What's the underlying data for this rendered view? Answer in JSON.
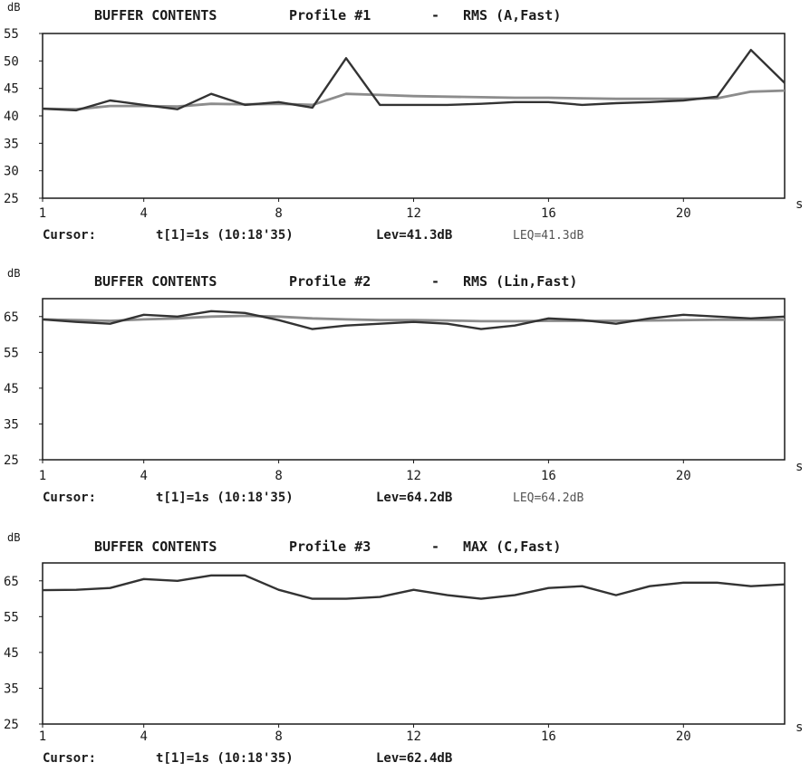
{
  "colors": {
    "trace": "#333333",
    "average": "#8c8c8c",
    "frame": "#1a1a1a",
    "background": "#ffffff"
  },
  "chart_data": [
    {
      "type": "line",
      "title": "BUFFER CONTENTS",
      "profile": "Profile #1",
      "separator": "-",
      "mode": "RMS (A,Fast)",
      "ylabel": "dB",
      "xlabel": "s",
      "ylim": [
        25,
        55
      ],
      "yticks": [
        55,
        50,
        45,
        40,
        35,
        30,
        25
      ],
      "xlim": [
        1,
        23
      ],
      "xticks": [
        1,
        4,
        8,
        12,
        16,
        20
      ],
      "series": [
        {
          "x": [
            1,
            2,
            3,
            4,
            5,
            6,
            7,
            8,
            9,
            10,
            11,
            12,
            13,
            14,
            15,
            16,
            17,
            18,
            19,
            20,
            21,
            22,
            23
          ],
          "values": [
            41.3,
            41.0,
            42.8,
            42.0,
            41.2,
            44.0,
            42.0,
            42.5,
            41.5,
            50.5,
            42.0,
            42.0,
            42.0,
            42.2,
            42.5,
            42.5,
            42.0,
            42.3,
            42.5,
            42.8,
            43.5,
            52.0,
            46.0
          ]
        },
        {
          "x": [
            1,
            2,
            3,
            4,
            5,
            6,
            7,
            8,
            9,
            10,
            11,
            12,
            13,
            14,
            15,
            16,
            17,
            18,
            19,
            20,
            21,
            22,
            23
          ],
          "values": [
            41.3,
            41.2,
            41.8,
            41.8,
            41.7,
            42.2,
            42.1,
            42.2,
            42.0,
            44.0,
            43.8,
            43.6,
            43.5,
            43.4,
            43.3,
            43.3,
            43.2,
            43.1,
            43.1,
            43.1,
            43.2,
            44.4,
            44.6
          ]
        }
      ],
      "cursor": {
        "label": "Cursor:",
        "time": "t[1]=1s (10:18'35)",
        "level": "Lev=41.3dB",
        "leq": "LEQ=41.3dB"
      }
    },
    {
      "type": "line",
      "title": "BUFFER CONTENTS",
      "profile": "Profile #2",
      "separator": "-",
      "mode": "RMS (Lin,Fast)",
      "ylabel": "dB",
      "xlabel": "s",
      "ylim": [
        25,
        70
      ],
      "yticks": [
        65,
        55,
        45,
        35,
        25
      ],
      "xlim": [
        1,
        23
      ],
      "xticks": [
        1,
        4,
        8,
        12,
        16,
        20
      ],
      "series": [
        {
          "x": [
            1,
            2,
            3,
            4,
            5,
            6,
            7,
            8,
            9,
            10,
            11,
            12,
            13,
            14,
            15,
            16,
            17,
            18,
            19,
            20,
            21,
            22,
            23
          ],
          "values": [
            64.2,
            63.5,
            63.0,
            65.5,
            65.0,
            66.5,
            66.0,
            64.0,
            61.5,
            62.5,
            63.0,
            63.5,
            63.0,
            61.5,
            62.5,
            64.5,
            64.0,
            63.0,
            64.5,
            65.5,
            65.0,
            64.5,
            65.0
          ]
        },
        {
          "x": [
            1,
            2,
            3,
            4,
            5,
            6,
            7,
            8,
            9,
            10,
            11,
            12,
            13,
            14,
            15,
            16,
            17,
            18,
            19,
            20,
            21,
            22,
            23
          ],
          "values": [
            64.2,
            64.0,
            63.8,
            64.2,
            64.5,
            65.0,
            65.2,
            65.0,
            64.5,
            64.2,
            64.0,
            64.0,
            63.9,
            63.7,
            63.7,
            63.8,
            63.8,
            63.8,
            63.9,
            64.0,
            64.1,
            64.1,
            64.1
          ]
        }
      ],
      "cursor": {
        "label": "Cursor:",
        "time": "t[1]=1s (10:18'35)",
        "level": "Lev=64.2dB",
        "leq": "LEQ=64.2dB"
      }
    },
    {
      "type": "line",
      "title": "BUFFER CONTENTS",
      "profile": "Profile #3",
      "separator": "-",
      "mode": "MAX (C,Fast)",
      "ylabel": "dB",
      "xlabel": "s",
      "ylim": [
        25,
        70
      ],
      "yticks": [
        65,
        55,
        45,
        35,
        25
      ],
      "xlim": [
        1,
        23
      ],
      "xticks": [
        1,
        4,
        8,
        12,
        16,
        20
      ],
      "series": [
        {
          "x": [
            1,
            2,
            3,
            4,
            5,
            6,
            7,
            8,
            9,
            10,
            11,
            12,
            13,
            14,
            15,
            16,
            17,
            18,
            19,
            20,
            21,
            22,
            23
          ],
          "values": [
            62.4,
            62.5,
            63.0,
            65.5,
            65.0,
            66.5,
            66.5,
            62.5,
            60.0,
            60.0,
            60.5,
            62.5,
            61.0,
            60.0,
            61.0,
            63.0,
            63.5,
            61.0,
            63.5,
            64.5,
            64.5,
            63.5,
            64.0
          ]
        }
      ],
      "cursor": {
        "label": "Cursor:",
        "time": "t[1]=1s (10:18'35)",
        "level": "Lev=62.4dB"
      }
    }
  ]
}
